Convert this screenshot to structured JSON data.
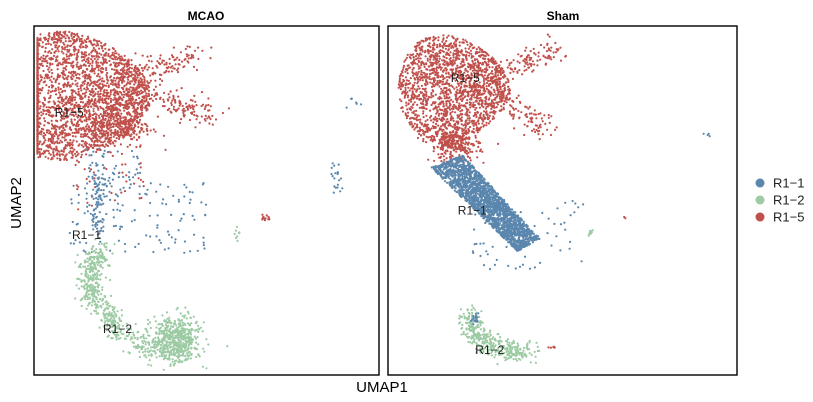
{
  "chart_data": {
    "type": "scatter",
    "xlabel": "UMAP1",
    "ylabel": "UMAP2",
    "grid": false,
    "legend_position": "right",
    "series": [
      {
        "name": "R1−1",
        "color": "#5B87AE"
      },
      {
        "name": "R1−2",
        "color": "#9CCAA3"
      },
      {
        "name": "R1−5",
        "color": "#C0504B"
      }
    ],
    "panels": [
      {
        "title": "MCAO",
        "cluster_labels": [
          {
            "text": "R1−5",
            "x": 0.06,
            "y": 0.74
          },
          {
            "text": "R1−1",
            "x": 0.11,
            "y": 0.39
          },
          {
            "text": "R1−2",
            "x": 0.2,
            "y": 0.12
          }
        ],
        "clusters": [
          {
            "series": 2,
            "shape": "arc",
            "cx": 0.12,
            "cy": 0.8,
            "w": 0.22,
            "h": 0.18,
            "n": 2400
          },
          {
            "series": 2,
            "shape": "tail",
            "pts": [
              [
                0.27,
                0.82
              ],
              [
                0.4,
                0.78
              ],
              [
                0.52,
                0.74
              ]
            ],
            "spread": 0.02,
            "n": 160
          },
          {
            "series": 2,
            "shape": "tail",
            "pts": [
              [
                0.26,
                0.86
              ],
              [
                0.38,
                0.88
              ],
              [
                0.48,
                0.92
              ]
            ],
            "spread": 0.02,
            "n": 120
          },
          {
            "series": 2,
            "shape": "blob",
            "cx": 0.24,
            "cy": 0.71,
            "w": 0.1,
            "h": 0.06,
            "n": 250
          },
          {
            "series": 2,
            "shape": "scatter",
            "cx": 0.22,
            "cy": 0.55,
            "w": 0.1,
            "h": 0.08,
            "n": 40
          },
          {
            "series": 2,
            "shape": "blob",
            "cx": 0.67,
            "cy": 0.45,
            "w": 0.015,
            "h": 0.01,
            "n": 12
          },
          {
            "series": 0,
            "shape": "tail",
            "pts": [
              [
                0.18,
                0.6
              ],
              [
                0.19,
                0.5
              ],
              [
                0.18,
                0.42
              ]
            ],
            "spread": 0.012,
            "n": 80
          },
          {
            "series": 0,
            "shape": "scatter",
            "cx": 0.3,
            "cy": 0.45,
            "w": 0.2,
            "h": 0.1,
            "n": 120
          },
          {
            "series": 0,
            "shape": "scatter",
            "cx": 0.23,
            "cy": 0.58,
            "w": 0.08,
            "h": 0.07,
            "n": 60
          },
          {
            "series": 0,
            "shape": "tail",
            "pts": [
              [
                0.87,
                0.61
              ],
              [
                0.88,
                0.56
              ],
              [
                0.88,
                0.52
              ]
            ],
            "spread": 0.006,
            "n": 20
          },
          {
            "series": 0,
            "shape": "blob",
            "cx": 0.92,
            "cy": 0.78,
            "w": 0.02,
            "h": 0.02,
            "n": 6
          },
          {
            "series": 1,
            "shape": "tail",
            "pts": [
              [
                0.2,
                0.36
              ],
              [
                0.16,
                0.3
              ],
              [
                0.17,
                0.22
              ],
              [
                0.25,
                0.12
              ],
              [
                0.36,
                0.07
              ],
              [
                0.46,
                0.06
              ]
            ],
            "spread": 0.018,
            "n": 650
          },
          {
            "series": 1,
            "shape": "blob",
            "cx": 0.41,
            "cy": 0.11,
            "w": 0.07,
            "h": 0.06,
            "n": 420
          },
          {
            "series": 1,
            "shape": "blob",
            "cx": 0.59,
            "cy": 0.4,
            "w": 0.008,
            "h": 0.02,
            "n": 8
          }
        ]
      },
      {
        "title": "Sham",
        "cluster_labels": [
          {
            "text": "R1−5",
            "x": 0.18,
            "y": 0.84
          },
          {
            "text": "R1−1",
            "x": 0.2,
            "y": 0.46
          },
          {
            "text": "R1−2",
            "x": 0.25,
            "y": 0.06
          }
        ],
        "clusters": [
          {
            "series": 2,
            "shape": "arc",
            "cx": 0.19,
            "cy": 0.82,
            "w": 0.16,
            "h": 0.15,
            "n": 1700
          },
          {
            "series": 2,
            "shape": "tail",
            "pts": [
              [
                0.3,
                0.86
              ],
              [
                0.4,
                0.9
              ],
              [
                0.48,
                0.93
              ]
            ],
            "spread": 0.02,
            "n": 120
          },
          {
            "series": 2,
            "shape": "tail",
            "pts": [
              [
                0.3,
                0.79
              ],
              [
                0.39,
                0.75
              ],
              [
                0.45,
                0.7
              ]
            ],
            "spread": 0.018,
            "n": 100
          },
          {
            "series": 2,
            "shape": "blob",
            "cx": 0.19,
            "cy": 0.66,
            "w": 0.07,
            "h": 0.05,
            "n": 300
          },
          {
            "series": 0,
            "shape": "tri",
            "cx": 0.26,
            "cy": 0.48,
            "w": 0.26,
            "h": 0.24,
            "n": 2000
          },
          {
            "series": 0,
            "shape": "scatter",
            "cx": 0.4,
            "cy": 0.4,
            "w": 0.16,
            "h": 0.1,
            "n": 60
          },
          {
            "series": 0,
            "shape": "blob",
            "cx": 0.91,
            "cy": 0.69,
            "w": 0.015,
            "h": 0.005,
            "n": 4
          },
          {
            "series": 2,
            "shape": "blob",
            "cx": 0.68,
            "cy": 0.45,
            "w": 0.005,
            "h": 0.005,
            "n": 2
          },
          {
            "series": 1,
            "shape": "blob",
            "cx": 0.58,
            "cy": 0.41,
            "w": 0.01,
            "h": 0.015,
            "n": 10
          },
          {
            "series": 1,
            "shape": "tail",
            "pts": [
              [
                0.23,
                0.17
              ],
              [
                0.26,
                0.1
              ],
              [
                0.33,
                0.07
              ],
              [
                0.41,
                0.07
              ]
            ],
            "spread": 0.016,
            "n": 380
          },
          {
            "series": 0,
            "shape": "blob",
            "cx": 0.25,
            "cy": 0.16,
            "w": 0.012,
            "h": 0.015,
            "n": 20
          },
          {
            "series": 2,
            "shape": "blob",
            "cx": 0.47,
            "cy": 0.08,
            "w": 0.01,
            "h": 0.005,
            "n": 6
          }
        ]
      }
    ]
  }
}
